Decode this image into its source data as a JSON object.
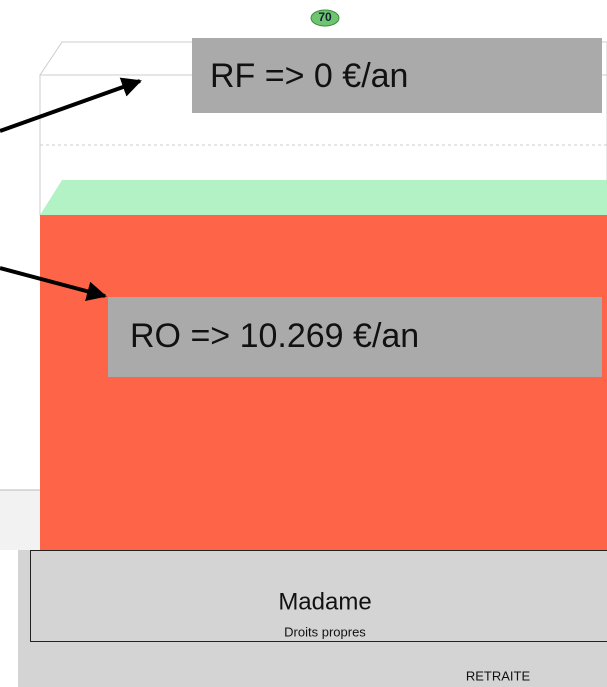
{
  "badge": "70",
  "annotations": [
    "RF => 0 €/an",
    "RO => 10.269 €/an"
  ],
  "panel": {
    "title": "Madame",
    "subtitle": "Droits propres",
    "footer": "RETRAITE"
  }
}
